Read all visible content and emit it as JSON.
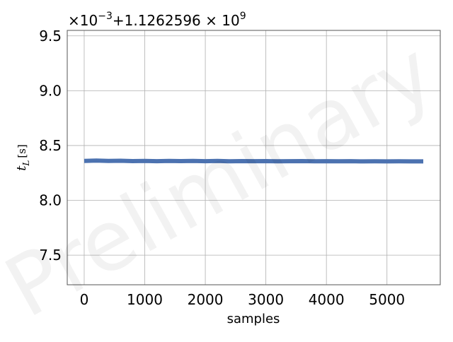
{
  "chart_data": {
    "type": "line",
    "title": "",
    "xlabel": "samples",
    "ylabel_base": "t",
    "ylabel_sub": "L",
    "ylabel_unit": "[s]",
    "offset_text": {
      "multiplier": "×10",
      "multiplier_exp": "−3",
      "plus": "+1.1262596 × 10",
      "offset_exp": "9"
    },
    "watermark": "Preliminary",
    "xlim": [
      -280,
      5880
    ],
    "ylim": [
      7.23,
      9.55
    ],
    "xticks": [
      0,
      1000,
      2000,
      3000,
      4000,
      5000
    ],
    "yticks": [
      7.5,
      8.0,
      8.5,
      9.0,
      9.5
    ],
    "xtick_labels": [
      "0",
      "1000",
      "2000",
      "3000",
      "4000",
      "5000"
    ],
    "ytick_labels": [
      "7.5",
      "8.0",
      "8.5",
      "9.0",
      "9.5"
    ],
    "grid": true,
    "series": [
      {
        "color": "#4c72b0",
        "x": [
          0,
          200,
          400,
          600,
          800,
          1000,
          1200,
          1400,
          1600,
          1800,
          2000,
          2200,
          2400,
          2600,
          2800,
          3000,
          3200,
          3400,
          3600,
          3800,
          4000,
          4200,
          4400,
          4600,
          4800,
          5000,
          5200,
          5400,
          5600
        ],
        "y": [
          8.36,
          8.362,
          8.359,
          8.361,
          8.358,
          8.36,
          8.357,
          8.359,
          8.358,
          8.36,
          8.357,
          8.359,
          8.356,
          8.358,
          8.357,
          8.358,
          8.356,
          8.357,
          8.358,
          8.356,
          8.357,
          8.356,
          8.357,
          8.355,
          8.356,
          8.355,
          8.356,
          8.355,
          8.355
        ]
      }
    ]
  }
}
